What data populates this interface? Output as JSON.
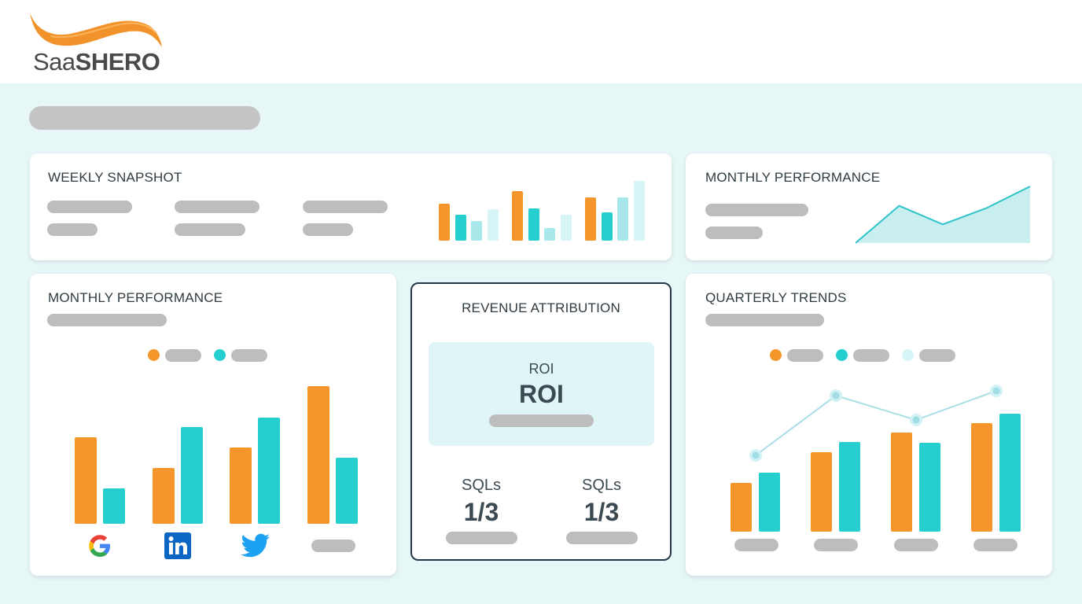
{
  "brand": {
    "name_light": "Saa",
    "name_bold": "SHERO",
    "accent": "#f5962a"
  },
  "colors": {
    "orange": "#f5962a",
    "teal": "#26cfcf",
    "light_teal": "#a9e8ea",
    "pale_teal": "#d7f5f6",
    "navy_border": "#23394a"
  },
  "weekly_snapshot": {
    "title": "WEEKLY SNAPSHOT",
    "chart_data": {
      "type": "bar",
      "series_colors": [
        "orange",
        "teal",
        "light_teal",
        "pale_teal"
      ],
      "groups": [
        {
          "values": [
            52,
            36,
            27,
            44
          ]
        },
        {
          "values": [
            69,
            45,
            18,
            36
          ]
        },
        {
          "values": [
            60,
            40,
            60,
            83
          ]
        }
      ]
    }
  },
  "monthly_performance_small": {
    "title": "MONTHLY PERFORMANCE",
    "chart_data": {
      "type": "area",
      "values": [
        0,
        48,
        24,
        45,
        73
      ]
    }
  },
  "monthly_performance": {
    "title": "MONTHLY PERFORMANCE",
    "chart_data": {
      "type": "bar",
      "categories": [
        "Google",
        "LinkedIn",
        "Twitter",
        ""
      ],
      "series": [
        {
          "color": "orange",
          "values": [
            110,
            71,
            97,
            175
          ]
        },
        {
          "color": "teal",
          "values": [
            45,
            123,
            135,
            84
          ]
        }
      ]
    },
    "icons": [
      "google-icon",
      "linkedin-icon",
      "twitter-icon"
    ]
  },
  "revenue_attribution": {
    "title": "REVENUE ATTRIBUTION",
    "roi_label": "ROI",
    "roi_value": "ROI",
    "stats": [
      {
        "label": "SQLs",
        "value": "1/3"
      },
      {
        "label": "SQLs",
        "value": "1/3"
      }
    ]
  },
  "quarterly_trends": {
    "title": "QUARTERLY TRENDS",
    "chart_data": {
      "type": "bar",
      "series": [
        {
          "color": "orange",
          "values": [
            62,
            101,
            126,
            138
          ]
        },
        {
          "color": "teal",
          "values": [
            75,
            114,
            113,
            150
          ]
        }
      ],
      "line": {
        "color": "light_teal",
        "values": [
          97,
          173,
          142,
          179
        ]
      }
    }
  }
}
